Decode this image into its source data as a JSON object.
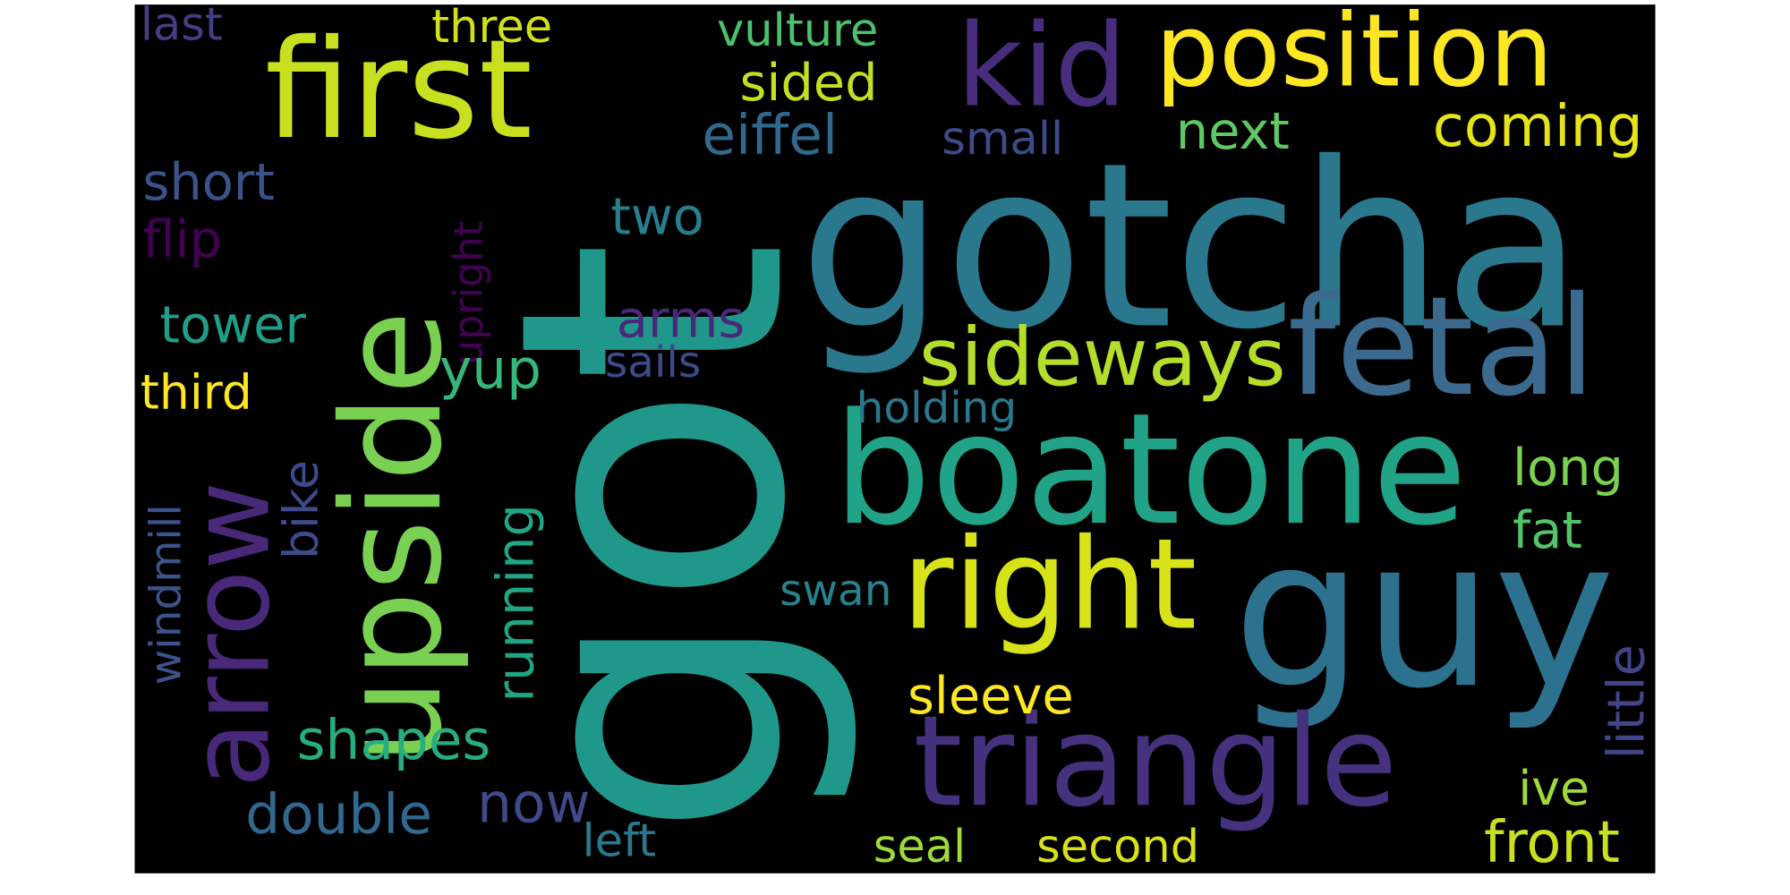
{
  "words": [
    "got",
    "gotcha",
    "first",
    "kid",
    "position",
    "fetal",
    "boatone",
    "right",
    "guy",
    "triangle",
    "sideways",
    "upside",
    "arrow",
    "three",
    "vulture",
    "last",
    "sided",
    "eiffel",
    "coming",
    "next",
    "small",
    "short",
    "flip",
    "upright",
    "two",
    "tower",
    "arms",
    "sails",
    "yup",
    "third",
    "holding",
    "long",
    "fat",
    "swan",
    "sleeve",
    "windmill",
    "bike",
    "running",
    "little",
    "shapes",
    "double",
    "now",
    "left",
    "seal",
    "second",
    "ive",
    "front"
  ]
}
